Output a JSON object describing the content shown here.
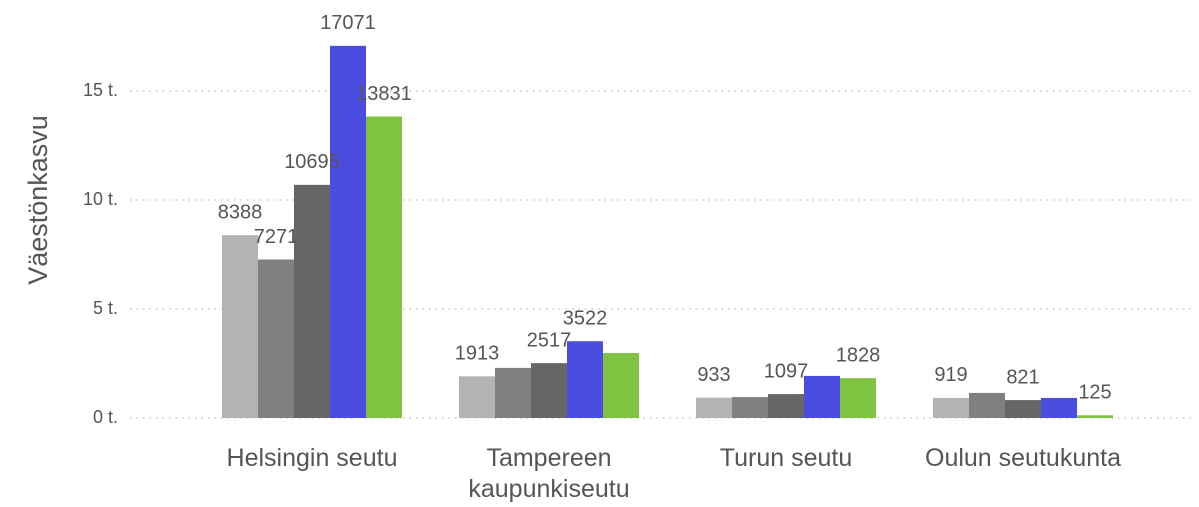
{
  "chart_data": {
    "type": "bar",
    "y_label": "Väestönkasvu",
    "categories": [
      "Helsingin seutu",
      "Tampereen kaupunkiseutu",
      "Turun seutu",
      "Oulun seutukunta"
    ],
    "series": [
      {
        "color": "#b3b3b3",
        "values": [
          8388,
          1913,
          933,
          919
        ],
        "value_labels": [
          "8388",
          "1913",
          "933",
          "919"
        ]
      },
      {
        "color": "#808080",
        "values": [
          7271,
          2300,
          960,
          1150
        ],
        "value_labels": [
          "7271",
          null,
          null,
          null
        ]
      },
      {
        "color": "#666666",
        "values": [
          10695,
          2517,
          1097,
          821
        ],
        "value_labels": [
          "10695",
          "2517",
          "1097",
          "821"
        ]
      },
      {
        "color": "#4a4de0",
        "values": [
          17071,
          3522,
          1930,
          920
        ],
        "value_labels": [
          "17071",
          "3522",
          null,
          null
        ]
      },
      {
        "color": "#80c341",
        "values": [
          13831,
          2980,
          1828,
          125
        ],
        "value_labels": [
          "13831",
          null,
          "1828",
          "125"
        ]
      }
    ],
    "ylim": [
      0,
      17500
    ],
    "yticks": [
      {
        "value": 0,
        "label": "0 t."
      },
      {
        "value": 5000,
        "label": "5 t."
      },
      {
        "value": 10000,
        "label": "10 t."
      },
      {
        "value": 15000,
        "label": "15 t."
      }
    ],
    "grid": true
  }
}
